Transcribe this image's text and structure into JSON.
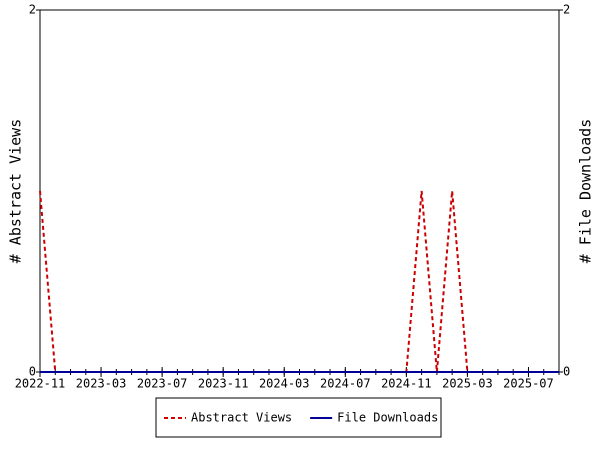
{
  "chart_data": {
    "type": "line",
    "x": [
      "2022-11",
      "2022-12",
      "2023-01",
      "2023-02",
      "2023-03",
      "2023-04",
      "2023-05",
      "2023-06",
      "2023-07",
      "2023-08",
      "2023-09",
      "2023-10",
      "2023-11",
      "2023-12",
      "2024-01",
      "2024-02",
      "2024-03",
      "2024-04",
      "2024-05",
      "2024-06",
      "2024-07",
      "2024-08",
      "2024-09",
      "2024-10",
      "2024-11",
      "2024-12",
      "2025-01",
      "2025-02",
      "2025-03",
      "2025-04",
      "2025-05",
      "2025-06",
      "2025-07",
      "2025-08",
      "2025-09"
    ],
    "xlim": [
      "2022-11",
      "2025-09"
    ],
    "xticks": [
      "2022-11",
      "2023-03",
      "2023-07",
      "2023-11",
      "2024-03",
      "2024-07",
      "2024-11",
      "2025-03",
      "2025-07"
    ],
    "ylabel": "# Abstract Views",
    "y2label": "# File Downloads",
    "ylim": [
      0,
      2
    ],
    "yticks": [
      0,
      2
    ],
    "y2lim": [
      0,
      2
    ],
    "y2ticks": [
      0,
      2
    ],
    "legend": "bottom",
    "series": [
      {
        "name": "Abstract Views",
        "color": "#cc0000",
        "dash": true,
        "axis": "y",
        "values": [
          1,
          0,
          0,
          0,
          0,
          0,
          0,
          0,
          0,
          0,
          0,
          0,
          0,
          0,
          0,
          0,
          0,
          0,
          0,
          0,
          0,
          0,
          0,
          0,
          0,
          1,
          0,
          1,
          0,
          0,
          0,
          0,
          0,
          0,
          0
        ]
      },
      {
        "name": "File Downloads",
        "color": "#000099",
        "dash": false,
        "axis": "y2",
        "values": [
          0,
          0,
          0,
          0,
          0,
          0,
          0,
          0,
          0,
          0,
          0,
          0,
          0,
          0,
          0,
          0,
          0,
          0,
          0,
          0,
          0,
          0,
          0,
          0,
          0,
          0,
          0,
          0,
          0,
          0,
          0,
          0,
          0,
          0,
          0
        ]
      }
    ]
  }
}
